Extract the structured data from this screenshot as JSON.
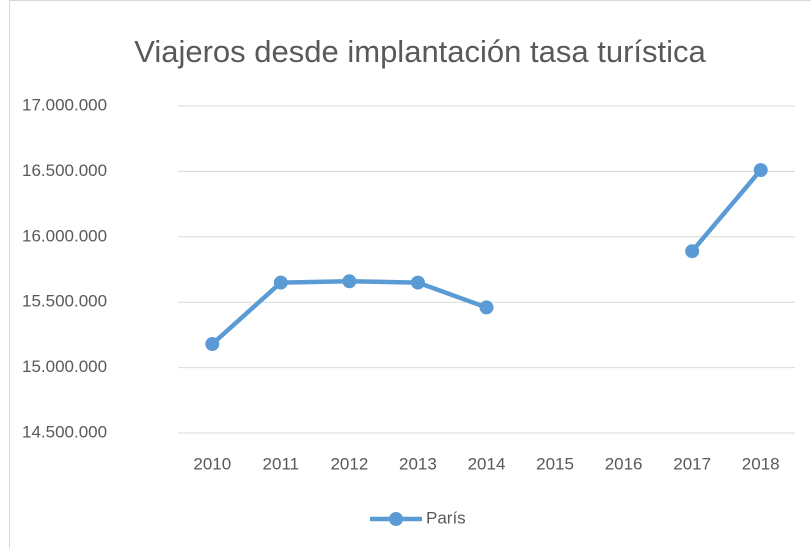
{
  "chart_data": {
    "type": "line",
    "title": "Viajeros desde implantación tasa turística",
    "categories": [
      "2010",
      "2011",
      "2012",
      "2013",
      "2014",
      "2015",
      "2016",
      "2017",
      "2018"
    ],
    "series": [
      {
        "name": "París",
        "color": "#5b9bd5",
        "values": [
          15180000,
          15650000,
          15660000,
          15650000,
          15460000,
          null,
          null,
          15890000,
          16510000
        ]
      }
    ],
    "ylim": [
      14500000,
      17000000
    ],
    "yticks": [
      {
        "value": 14500000,
        "label": "14.500.000"
      },
      {
        "value": 15000000,
        "label": "15.000.000"
      },
      {
        "value": 15500000,
        "label": "15.500.000"
      },
      {
        "value": 16000000,
        "label": "16.000.000"
      },
      {
        "value": 16500000,
        "label": "16.500.000"
      },
      {
        "value": 17000000,
        "label": "17.000.000"
      }
    ],
    "grid": true,
    "legend": "bottom"
  }
}
